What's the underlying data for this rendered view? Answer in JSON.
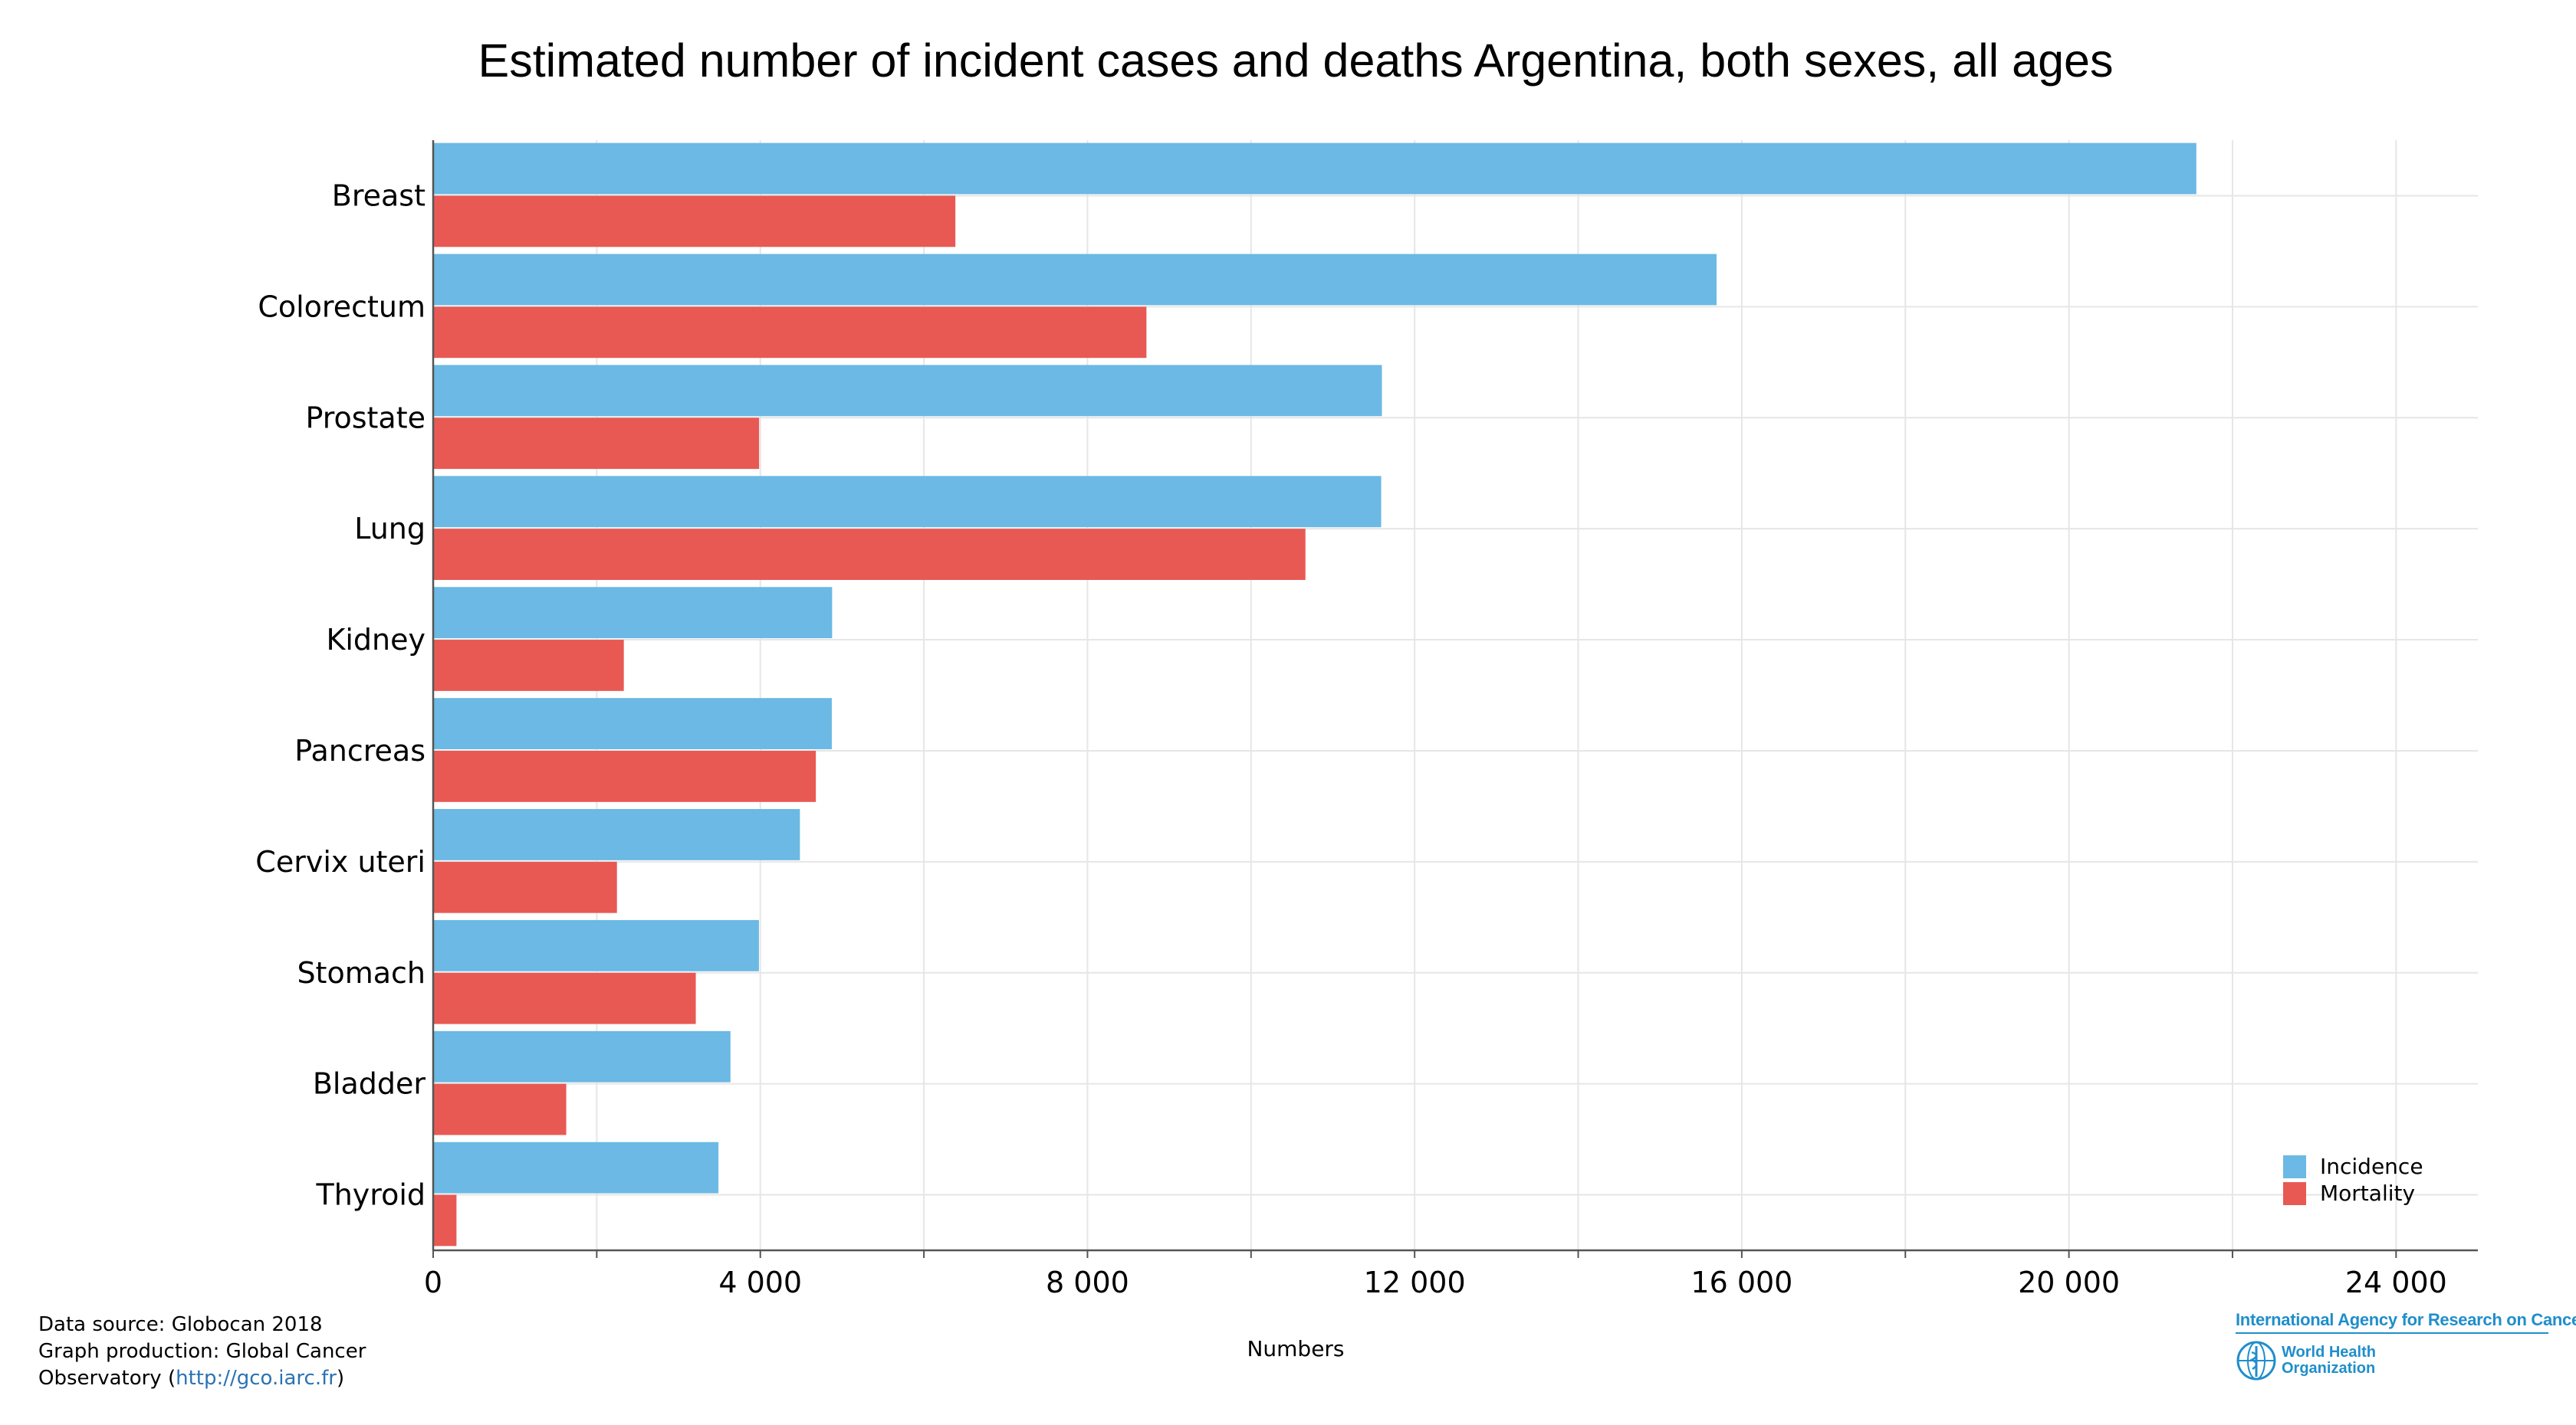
{
  "chart_data": {
    "type": "bar",
    "orientation": "horizontal",
    "title": "Estimated number of incident cases and deaths Argentina, both sexes, all ages",
    "xlabel": "Numbers",
    "xlim": [
      0,
      25000
    ],
    "x_ticks": [
      0,
      4000,
      8000,
      12000,
      16000,
      20000,
      24000
    ],
    "x_tick_labels": [
      "0",
      "4 000",
      "8 000",
      "12 000",
      "16 000",
      "20 000",
      "24 000"
    ],
    "grid": true,
    "legend_position": "bottom-right",
    "categories": [
      "Breast",
      "Colorectum",
      "Prostate",
      "Lung",
      "Kidney",
      "Pancreas",
      "Cervix uteri",
      "Stomach",
      "Bladder",
      "Thyroid"
    ],
    "series": [
      {
        "name": "Incidence",
        "color": "#6bb9e4",
        "values": [
          21558,
          15692,
          11600,
          11591,
          4878,
          4874,
          4484,
          3983,
          3635,
          3488
        ]
      },
      {
        "name": "Mortality",
        "color": "#e85953",
        "values": [
          6385,
          8721,
          3985,
          10665,
          2331,
          4679,
          2247,
          3211,
          1627,
          285
        ]
      }
    ]
  },
  "footer": {
    "line1": "Data source: Globocan 2018",
    "line2": "Graph production: Global Cancer",
    "line3_prefix": "Observatory (",
    "link": "http://gco.iarc.fr",
    "line3_suffix": ")"
  },
  "logo": {
    "iarc": "International Agency for Research on Cancer",
    "who_line1": "World Health",
    "who_line2": "Organization"
  }
}
